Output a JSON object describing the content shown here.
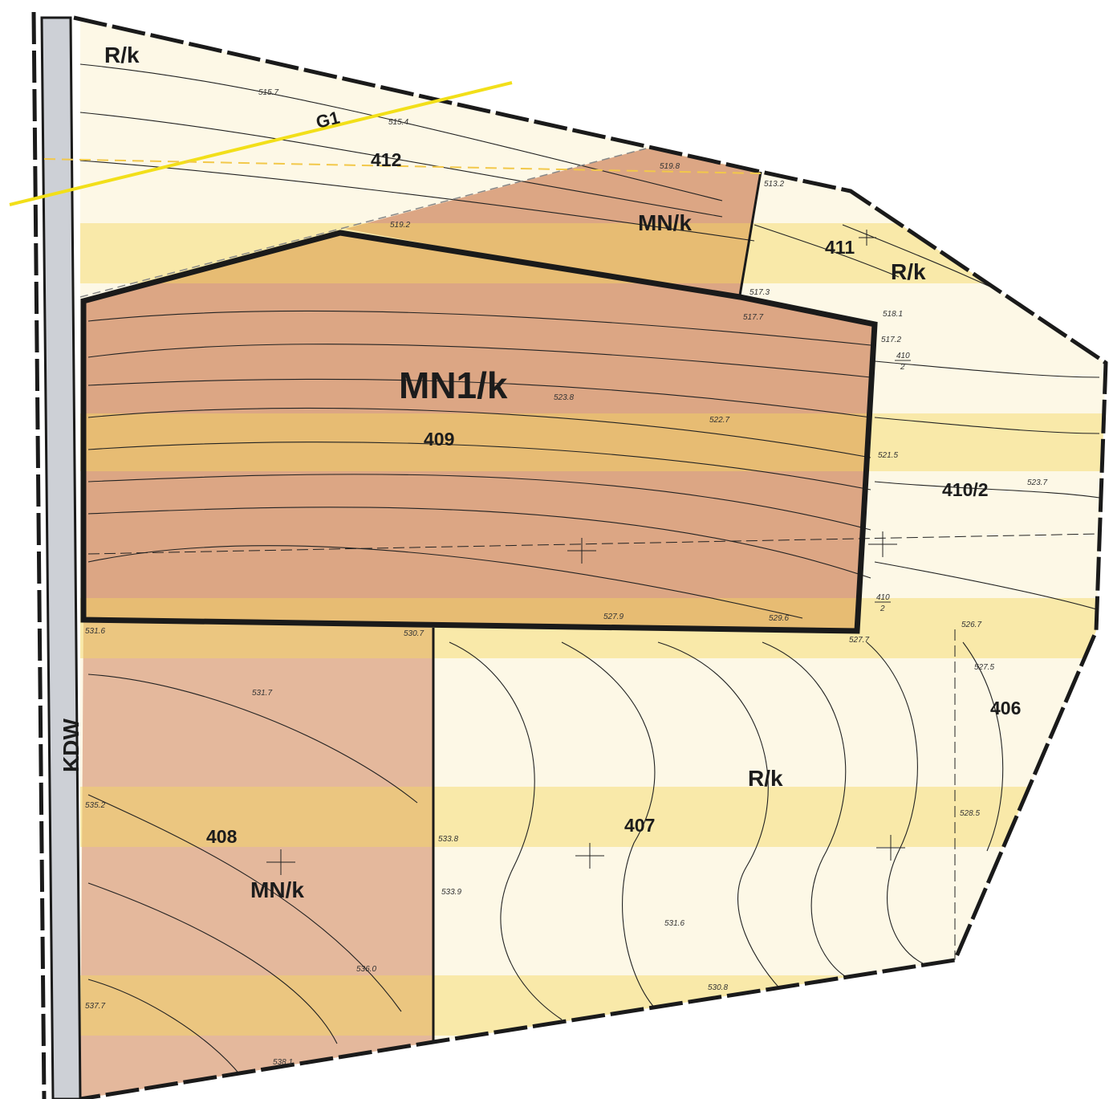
{
  "map": {
    "colors": {
      "background": "#fdf8e6",
      "mn_zone": "#dca684",
      "mn_zone_light": "#e4b89c",
      "rk_zone": "#fdf6dd",
      "band": "#fbe99a",
      "road": "#cdd0d6",
      "boundary": "#1a1a1a",
      "line_g1": "#f2df19"
    },
    "zones": [
      {
        "id": "zone-rk-top",
        "label": "R/k"
      },
      {
        "id": "zone-mn-upper",
        "label": "MN/k"
      },
      {
        "id": "zone-mn1",
        "label": "MN1/k"
      },
      {
        "id": "zone-rk-right",
        "label": "R/k"
      },
      {
        "id": "zone-rk-lower",
        "label": "R/k"
      },
      {
        "id": "zone-mn-lower",
        "label": "MN/k"
      }
    ],
    "parcels": [
      "412",
      "411",
      "409",
      "410/2",
      "406",
      "407",
      "408"
    ],
    "fractions": [
      {
        "num": "410",
        "den": "2"
      },
      {
        "num": "410",
        "den": "2"
      }
    ],
    "line_label": "G1",
    "road_label": "KDW",
    "elevations": [
      "515.7",
      "515.4",
      "519.8",
      "513.2",
      "517.3",
      "517.7",
      "519.2",
      "518.1",
      "517.2",
      "523.8",
      "522.7",
      "521.5",
      "523.7",
      "527.9",
      "526.7",
      "527.5",
      "528.5",
      "527.7",
      "531.6",
      "530.7",
      "531.7",
      "535.2",
      "533.8",
      "533.9",
      "531.6",
      "536.0",
      "537.7",
      "538.1",
      "529.6",
      "530.8"
    ]
  }
}
